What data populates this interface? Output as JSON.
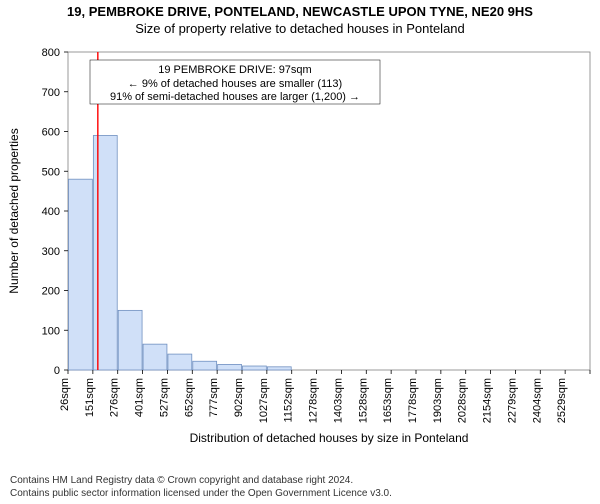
{
  "titles": {
    "main": "19, PEMBROKE DRIVE, PONTELAND, NEWCASTLE UPON TYNE, NE20 9HS",
    "sub": "Size of property relative to detached houses in Ponteland",
    "x_axis": "Distribution of detached houses by size in Ponteland",
    "y_axis": "Number of detached properties"
  },
  "chart": {
    "type": "histogram",
    "background_color": "#ffffff",
    "plot_border_color": "#808080",
    "bar_fill": "#d0e0f8",
    "bar_stroke": "#7090c0",
    "marker_line_color": "#ff0000",
    "ylim": [
      0,
      800
    ],
    "ytick_step": 100,
    "x_categories": [
      "26sqm",
      "151sqm",
      "276sqm",
      "401sqm",
      "527sqm",
      "652sqm",
      "777sqm",
      "902sqm",
      "1027sqm",
      "1152sqm",
      "1278sqm",
      "1403sqm",
      "1528sqm",
      "1653sqm",
      "1778sqm",
      "1903sqm",
      "2028sqm",
      "2154sqm",
      "2279sqm",
      "2404sqm",
      "2529sqm"
    ],
    "values": [
      480,
      590,
      150,
      65,
      40,
      22,
      14,
      10,
      8,
      0,
      0,
      0,
      0,
      0,
      0,
      0,
      0,
      0,
      0,
      0,
      0
    ],
    "marker_index": 1,
    "info_box": {
      "line1": "19 PEMBROKE DRIVE: 97sqm",
      "line2": "← 9% of detached houses are smaller (113)",
      "line3": "91% of semi-detached houses are larger (1,200) →"
    }
  },
  "footer": {
    "line1": "Contains HM Land Registry data © Crown copyright and database right 2024.",
    "line2": "Contains public sector information licensed under the Open Government Licence v3.0."
  }
}
